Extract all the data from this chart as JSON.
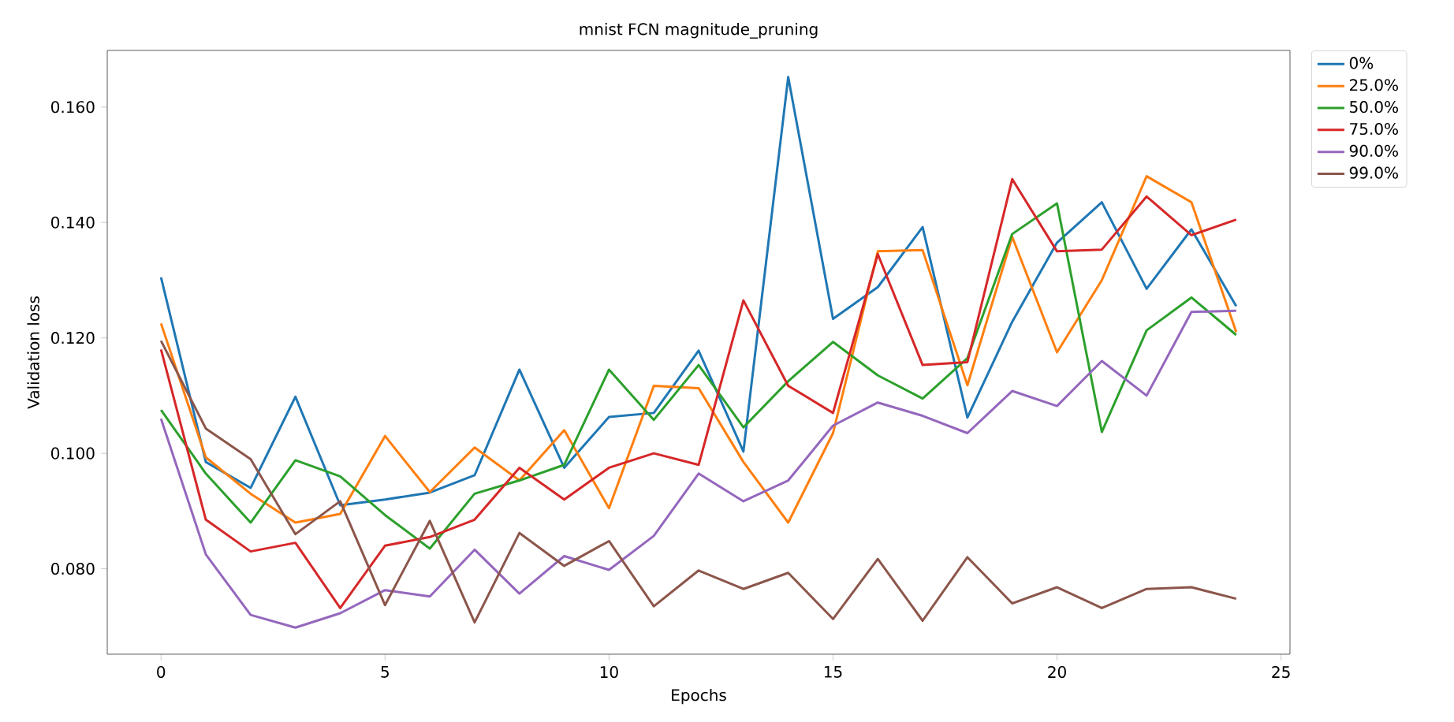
{
  "chart_data": {
    "type": "line",
    "title": "mnist FCN magnitude_pruning",
    "xlabel": "Epochs",
    "ylabel": "Validation loss",
    "x": [
      0,
      1,
      2,
      3,
      4,
      5,
      6,
      7,
      8,
      9,
      10,
      11,
      12,
      13,
      14,
      15,
      16,
      17,
      18,
      19,
      20,
      21,
      22,
      23,
      24
    ],
    "series": [
      {
        "name": "0%",
        "color": "#1f77b4",
        "values": [
          0.1305,
          0.0985,
          0.094,
          0.1098,
          0.091,
          0.092,
          0.0932,
          0.0962,
          0.1145,
          0.0975,
          0.1063,
          0.107,
          0.1178,
          0.1003,
          0.1652,
          0.1233,
          0.1288,
          0.1392,
          0.1062,
          0.1228,
          0.1365,
          0.1435,
          0.1285,
          0.1388,
          0.1255
        ]
      },
      {
        "name": "25.0%",
        "color": "#ff7f0e",
        "values": [
          0.1225,
          0.0993,
          0.093,
          0.088,
          0.0895,
          0.103,
          0.0933,
          0.101,
          0.0953,
          0.104,
          0.0905,
          0.1117,
          0.1113,
          0.0985,
          0.088,
          0.1035,
          0.135,
          0.1352,
          0.1118,
          0.1375,
          0.1175,
          0.13,
          0.148,
          0.1435,
          0.121
        ]
      },
      {
        "name": "50.0%",
        "color": "#2ca02c",
        "values": [
          0.1075,
          0.0965,
          0.088,
          0.0988,
          0.096,
          0.0893,
          0.0835,
          0.093,
          0.0953,
          0.098,
          0.1145,
          0.1058,
          0.1153,
          0.1045,
          0.1125,
          0.1193,
          0.1135,
          0.1095,
          0.1165,
          0.138,
          0.1433,
          0.1037,
          0.1213,
          0.127,
          0.1205
        ]
      },
      {
        "name": "75.0%",
        "color": "#d62728",
        "values": [
          0.118,
          0.0885,
          0.083,
          0.0845,
          0.0732,
          0.084,
          0.0855,
          0.0885,
          0.0975,
          0.092,
          0.0975,
          0.1,
          0.098,
          0.1265,
          0.1117,
          0.107,
          0.1345,
          0.1153,
          0.1158,
          0.1475,
          0.135,
          0.1353,
          0.1445,
          0.1378,
          0.1405
        ]
      },
      {
        "name": "90.0%",
        "color": "#9467bd",
        "values": [
          0.106,
          0.0825,
          0.072,
          0.0698,
          0.0723,
          0.0763,
          0.0752,
          0.0833,
          0.0757,
          0.0822,
          0.0798,
          0.0857,
          0.0965,
          0.0917,
          0.0953,
          0.1048,
          0.1088,
          0.1065,
          0.1035,
          0.1108,
          0.1082,
          0.116,
          0.11,
          0.1245,
          0.1247
        ]
      },
      {
        "name": "99.0%",
        "color": "#8c564b",
        "values": [
          0.1195,
          0.1043,
          0.099,
          0.086,
          0.0917,
          0.0737,
          0.0883,
          0.0707,
          0.0862,
          0.0805,
          0.0848,
          0.0735,
          0.0797,
          0.0765,
          0.0793,
          0.0713,
          0.0817,
          0.071,
          0.082,
          0.074,
          0.0768,
          0.0732,
          0.0765,
          0.0768,
          0.0748
        ]
      }
    ],
    "xlim": [
      -1.2,
      25.2
    ],
    "ylim": [
      0.0652,
      0.1698
    ],
    "xticks": [
      0,
      5,
      10,
      15,
      20,
      25
    ],
    "yticks": [
      {
        "value": 0.08,
        "label": "0.080"
      },
      {
        "value": 0.1,
        "label": "0.100"
      },
      {
        "value": 0.12,
        "label": "0.120"
      },
      {
        "value": 0.14,
        "label": "0.140"
      },
      {
        "value": 0.16,
        "label": "0.160"
      }
    ],
    "legend": "top right",
    "grid": false,
    "marker": "none",
    "line_style": "solid"
  }
}
